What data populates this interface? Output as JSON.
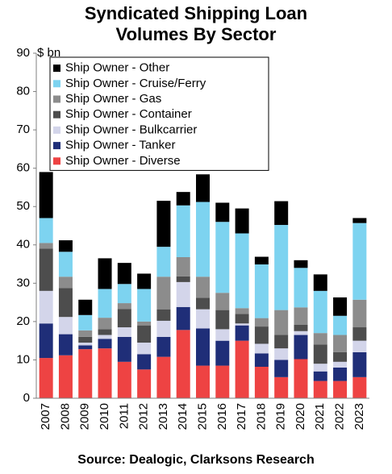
{
  "title_line1": "Syndicated Shipping Loan",
  "title_line2": "Volumes By Sector",
  "source": "Source: Dealogic, Clarksons Research",
  "chart_data": {
    "type": "bar",
    "stacked": true,
    "ylabel": "$ bn",
    "ylim": [
      0,
      90
    ],
    "yticks": [
      0,
      10,
      20,
      30,
      40,
      50,
      60,
      70,
      80,
      90
    ],
    "grid": false,
    "legend_position": "top-left",
    "categories": [
      "2007",
      "2008",
      "2009",
      "2010",
      "2011",
      "2012",
      "2013",
      "2014",
      "2015",
      "2016",
      "2017",
      "2018",
      "2019",
      "2020",
      "2021",
      "2022",
      "2023"
    ],
    "series": [
      {
        "name": "Ship Owner - Diverse",
        "color": "#ee4343",
        "values": [
          10.5,
          11.2,
          12.8,
          13,
          9.5,
          7.5,
          10.8,
          17.8,
          8.5,
          8.5,
          15,
          8.2,
          5.5,
          10.2,
          4.5,
          4.5,
          5.5
        ]
      },
      {
        "name": "Ship Owner - Tanker",
        "color": "#1f2e78",
        "values": [
          9,
          5.5,
          1,
          2.5,
          6.5,
          4,
          5.2,
          6,
          9.7,
          6.5,
          4,
          3.5,
          4.5,
          6.3,
          2.5,
          3.5,
          6.5
        ]
      },
      {
        "name": "Ship Owner - Bulkcarrier",
        "color": "#d3d5ea",
        "values": [
          8.5,
          4.5,
          0.7,
          1,
          2.5,
          3,
          4.2,
          6.5,
          5,
          3,
          0.5,
          2.5,
          3,
          1,
          2,
          1.5,
          3
        ]
      },
      {
        "name": "Ship Owner - Container",
        "color": "#4d4d4d",
        "values": [
          11,
          7.5,
          1.5,
          1.5,
          4.8,
          4.5,
          3,
          1.5,
          3,
          5,
          2.5,
          4.5,
          3.5,
          1.7,
          5,
          2.5,
          3.5
        ]
      },
      {
        "name": "Ship Owner - Gas",
        "color": "#8c8c8c",
        "values": [
          1.5,
          3,
          1.7,
          3,
          1.5,
          1,
          8.5,
          5,
          5.5,
          4.5,
          1.5,
          2.2,
          6.5,
          4.5,
          3,
          4.5,
          7.2
        ]
      },
      {
        "name": "Ship Owner - Cruise/Ferry",
        "color": "#7dd3f0",
        "values": [
          6.5,
          6.5,
          4,
          7.5,
          5,
          8.5,
          7.8,
          13.5,
          19.5,
          18.5,
          19.5,
          14,
          22.2,
          10.3,
          11,
          5,
          20
        ]
      },
      {
        "name": "Ship Owner - Other",
        "color": "#000000",
        "values": [
          12,
          3,
          4,
          8,
          5.5,
          4,
          12,
          3.5,
          7.2,
          5,
          6.5,
          2,
          6.2,
          2,
          4.3,
          4.8,
          1.3
        ]
      }
    ]
  }
}
